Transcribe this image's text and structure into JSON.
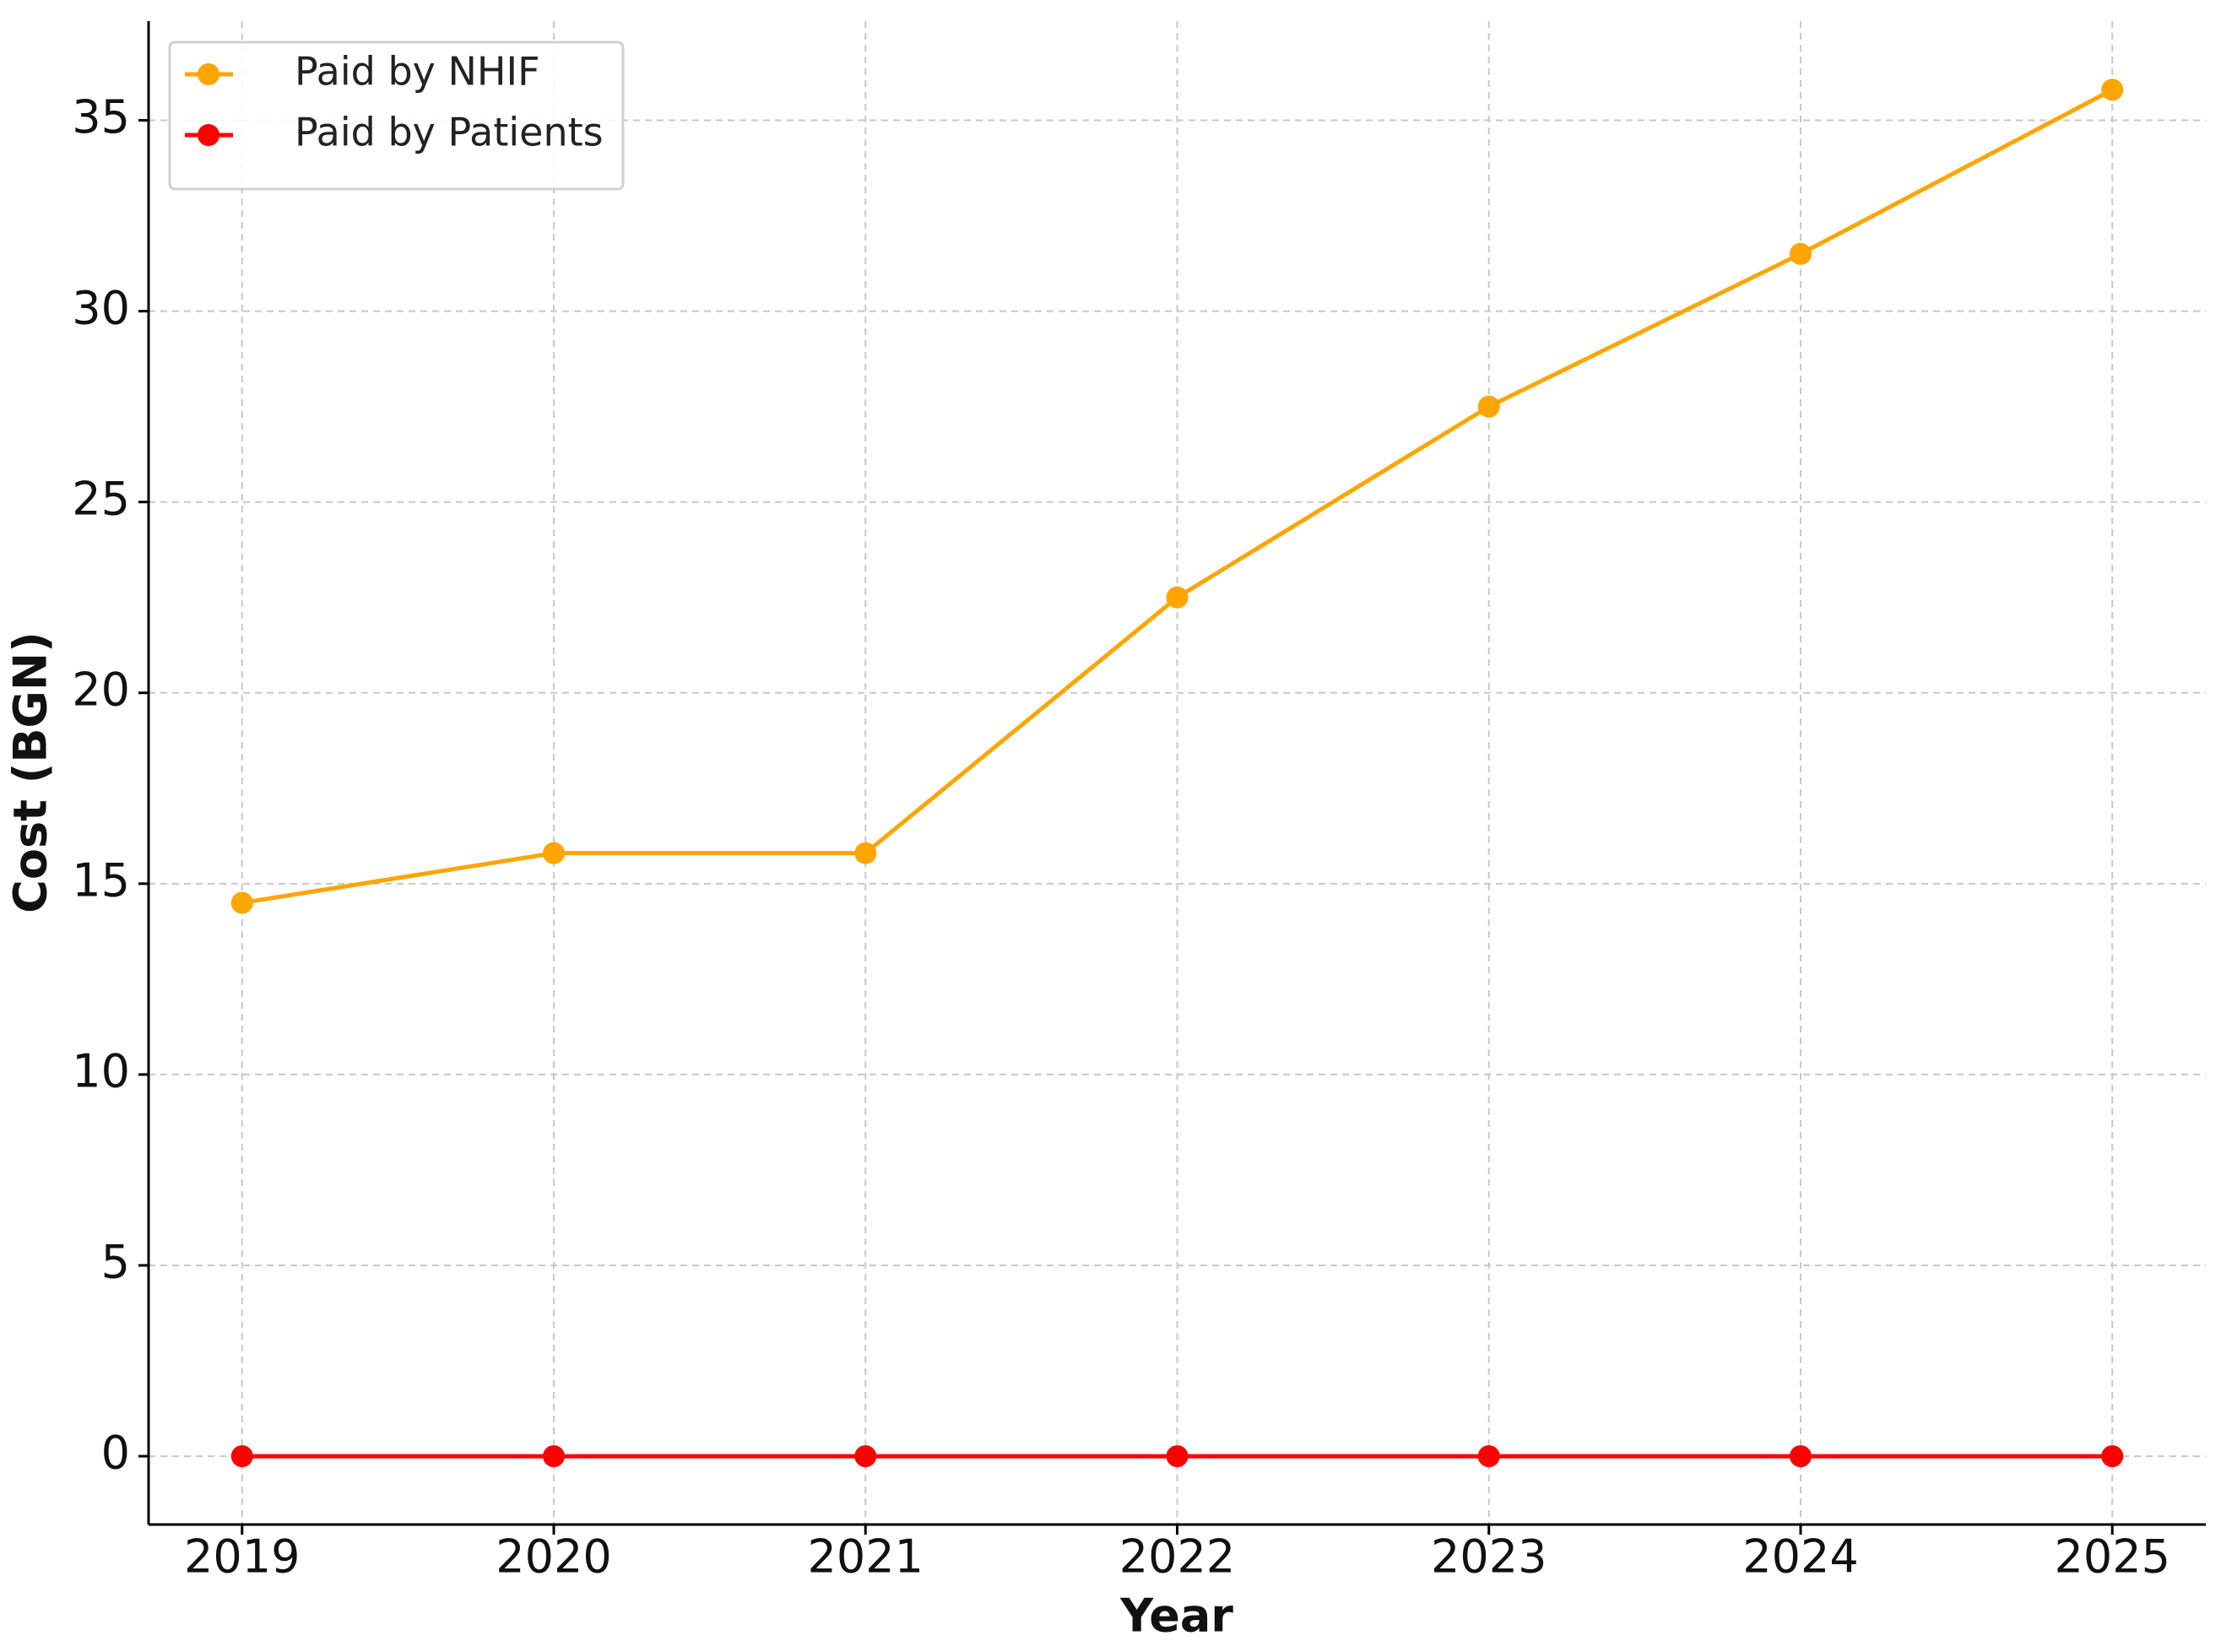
{
  "chart_data": {
    "type": "line",
    "x_label": "Year",
    "y_label": "Cost (BGN)",
    "x": [
      2019,
      2020,
      2021,
      2022,
      2023,
      2024,
      2025
    ],
    "series": [
      {
        "name": "Paid by NHIF",
        "color": "#FFA500",
        "values": [
          14.5,
          15.8,
          15.8,
          22.5,
          27.5,
          31.5,
          35.8
        ]
      },
      {
        "name": "Paid by Patients",
        "color": "#FF0000",
        "values": [
          0,
          0,
          0,
          0,
          0,
          0,
          0
        ]
      }
    ],
    "xlim": [
      2018.7,
      2025.3
    ],
    "xticks": [
      2019,
      2020,
      2021,
      2022,
      2023,
      2024,
      2025
    ],
    "ylim": [
      -1.79,
      37.6
    ],
    "yticks": [
      0,
      5,
      10,
      15,
      20,
      25,
      30,
      35
    ],
    "grid": true,
    "legend": "upper left",
    "markers": true
  }
}
